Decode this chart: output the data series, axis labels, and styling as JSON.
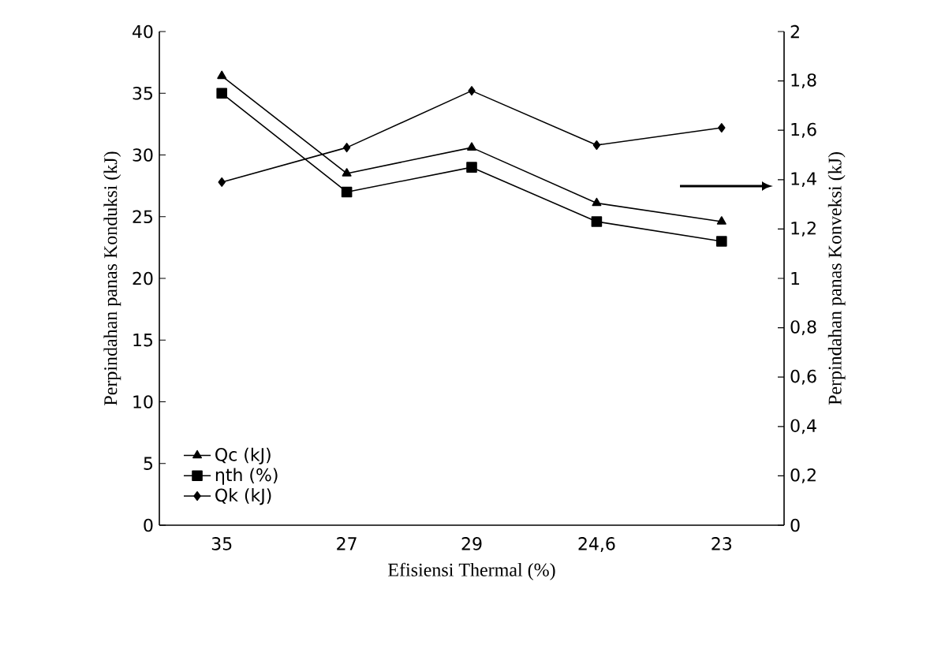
{
  "chart_data": {
    "type": "line",
    "xlabel": "Efisiensi Thermal (%)",
    "ylabel": "Perpindahan panas Konduksi (kJ)",
    "y2label": "Perpindahan panas Konveksi (kJ)",
    "categories": [
      "35",
      "27",
      "29",
      "24,6",
      "23"
    ],
    "series": [
      {
        "name": "Qc (kJ)",
        "color": "#000000",
        "marker": "triangle",
        "values": [
          36.4,
          28.5,
          30.6,
          26.1,
          24.6
        ]
      },
      {
        "name": "ηth (%)",
        "color": "#000000",
        "marker": "square",
        "values": [
          35,
          27,
          29,
          24.6,
          23
        ]
      },
      {
        "name": "Qk (kJ)",
        "color": "#000000",
        "marker": "diamond",
        "axis": "y2",
        "values": [
          1.39,
          1.53,
          1.76,
          1.54,
          1.61
        ]
      }
    ],
    "ylim": [
      0,
      40
    ],
    "yticks": [
      0,
      5,
      10,
      15,
      20,
      25,
      30,
      35,
      40
    ],
    "y2lim": [
      0,
      2
    ],
    "y2ticks": [
      0,
      {
        "value": 0.2,
        "label": "0,2"
      },
      {
        "value": 0.4,
        "label": "0,4"
      },
      {
        "value": 0.6,
        "label": "0,6"
      },
      {
        "value": 0.8,
        "label": "0,8"
      },
      1,
      {
        "value": 1.2,
        "label": "1,2"
      },
      {
        "value": 1.4,
        "label": "1,4"
      },
      {
        "value": 1.6,
        "label": "1,6"
      },
      {
        "value": 1.8,
        "label": "1,8"
      },
      2
    ],
    "legend": "bottom left",
    "line_style": "solid",
    "grid": false
  }
}
